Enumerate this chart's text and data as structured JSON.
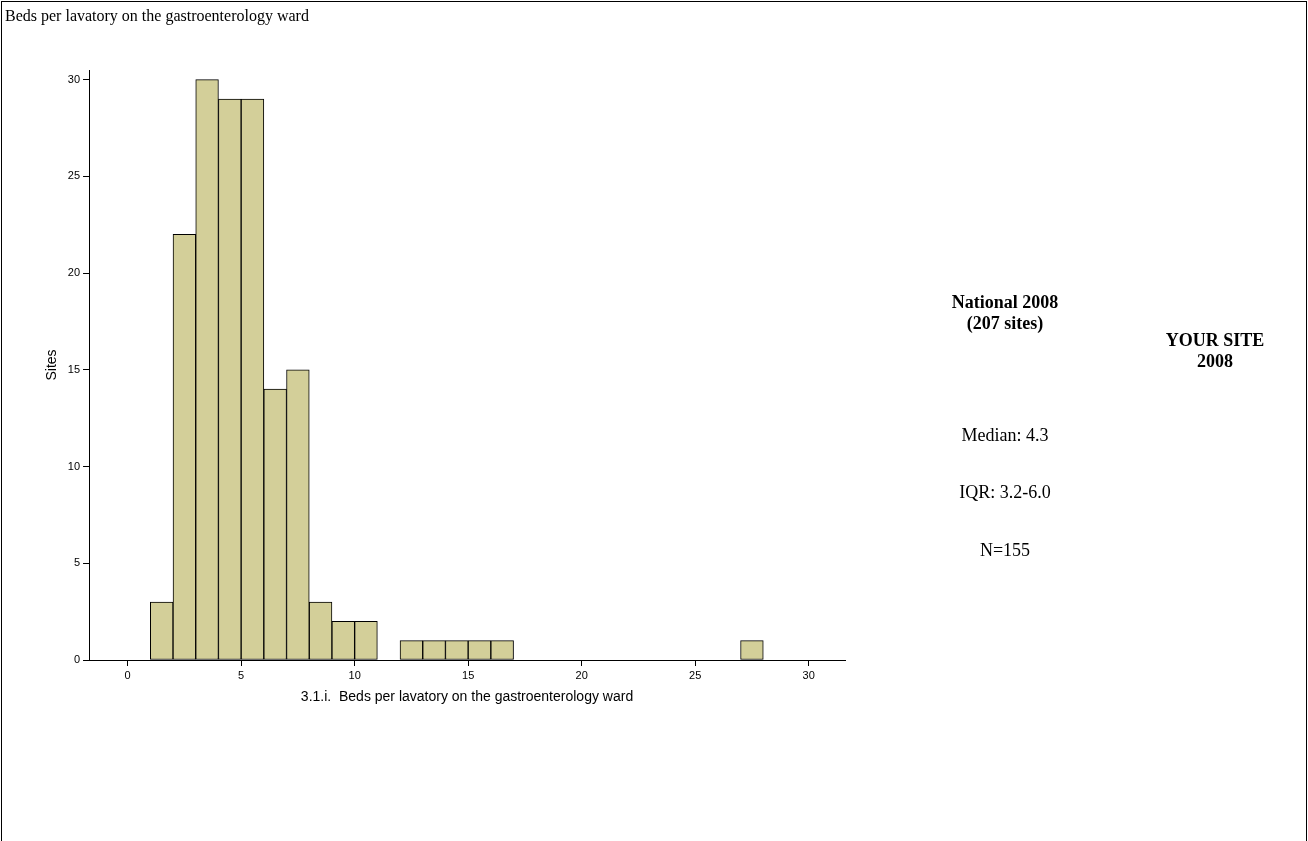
{
  "chart_data": {
    "type": "histogram",
    "title": "Beds per lavatory on the gastroenterology ward",
    "xlabel": "3.1.i.  Beds per lavatory on the gastroenterology ward",
    "ylabel": "Sites",
    "bins": [
      1,
      2,
      3,
      4,
      5,
      6,
      7,
      8,
      9,
      10,
      11,
      12,
      13,
      14,
      15,
      16,
      17,
      18,
      19,
      20,
      21,
      22,
      23,
      24,
      25,
      26,
      27,
      28
    ],
    "values": [
      3,
      22,
      30,
      29,
      29,
      14,
      15,
      3,
      2,
      2,
      0,
      1,
      1,
      1,
      1,
      1,
      0,
      0,
      0,
      0,
      0,
      0,
      0,
      0,
      0,
      0,
      1
    ],
    "color": "#d3cf99",
    "xlim": [
      -1.7,
      31.6
    ],
    "xticks": [
      0,
      5,
      10,
      15,
      20,
      25,
      30
    ],
    "ylim": [
      0,
      30.5
    ],
    "yticks": [
      0,
      5,
      10,
      15,
      20,
      25,
      30
    ],
    "grid": false,
    "legend": false,
    "annotations": [
      "National 2008\n(207 sites)",
      "YOUR SITE\n2008",
      "Median: 4.3",
      "IQR: 3.2-6.0",
      "N=155"
    ]
  }
}
